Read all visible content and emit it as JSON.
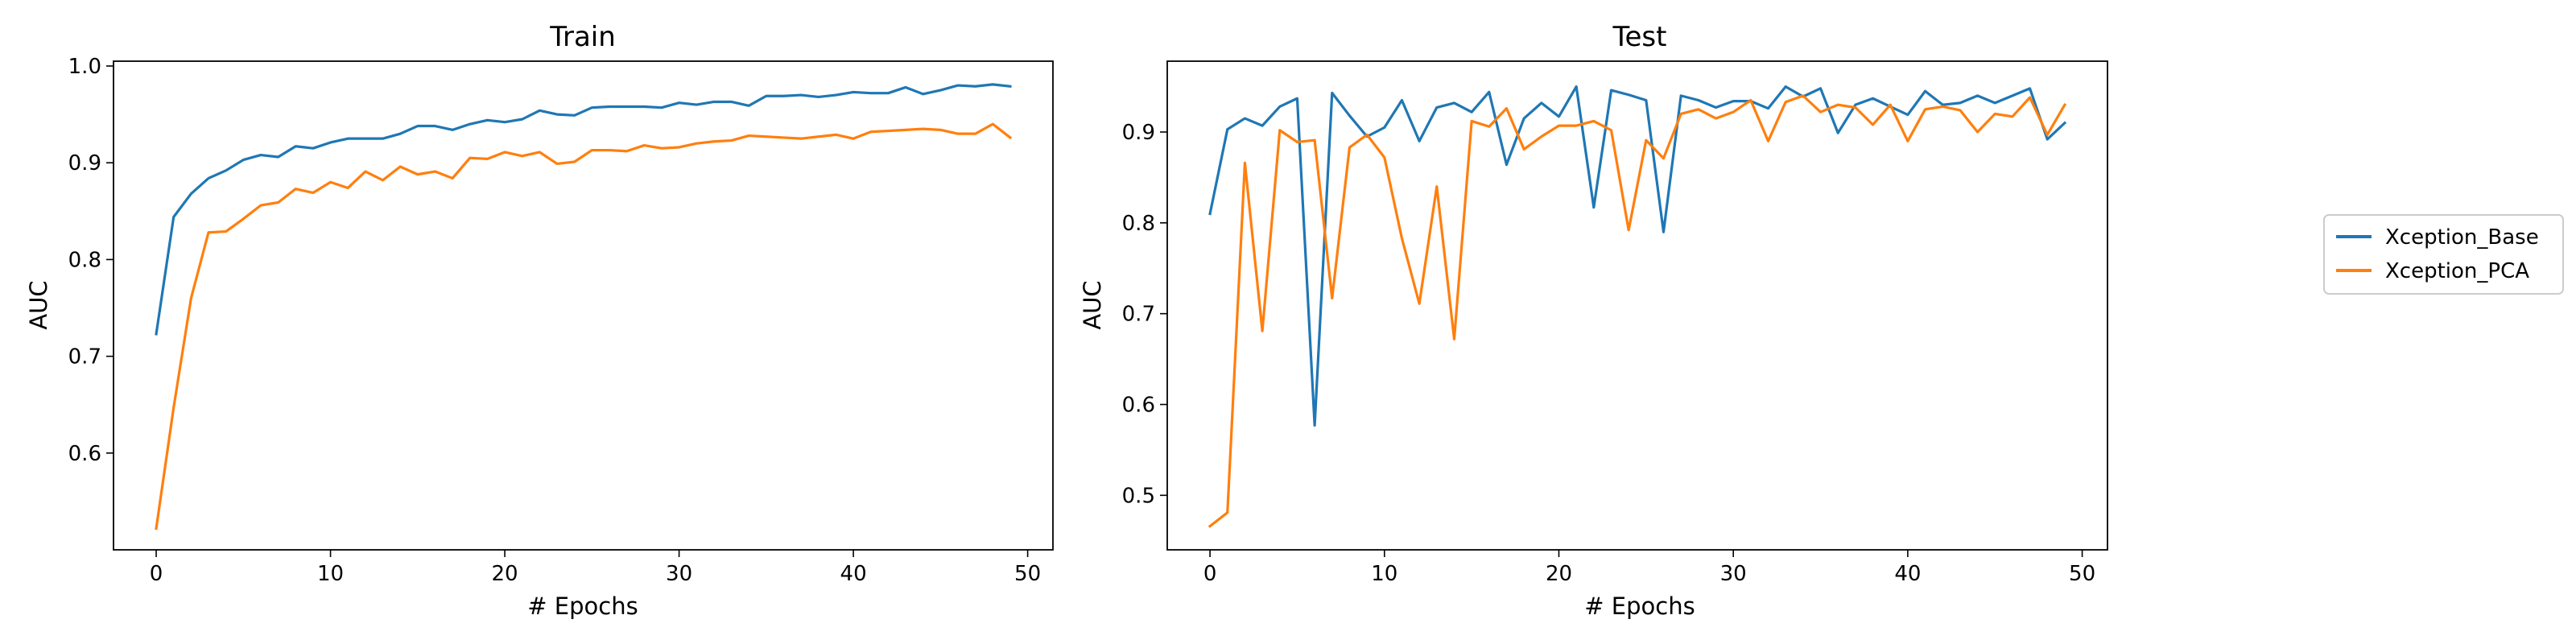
{
  "colors": {
    "series_1": "#1f77b4",
    "series_2": "#ff7f0e",
    "axis": "#000000",
    "legend_border": "#cccccc"
  },
  "legend": {
    "placement": "right-outside",
    "entries": [
      "Xception_Base",
      "Xception_PCA"
    ]
  },
  "chart_data": [
    {
      "type": "line",
      "title": "Train",
      "xlabel": "# Epochs",
      "ylabel": "AUC",
      "xlim": [
        -2.45,
        51.45
      ],
      "ylim": [
        0.5,
        1.005
      ],
      "xticks": [
        0,
        10,
        20,
        30,
        40,
        50
      ],
      "yticks": [
        0.6,
        0.7,
        0.8,
        0.9,
        1.0
      ],
      "ytick_labels": [
        "0.6",
        "0.7",
        "0.8",
        "0.9",
        "1.0"
      ],
      "grid": false,
      "x": [
        0,
        1,
        2,
        3,
        4,
        5,
        6,
        7,
        8,
        9,
        10,
        11,
        12,
        13,
        14,
        15,
        16,
        17,
        18,
        19,
        20,
        21,
        22,
        23,
        24,
        25,
        26,
        27,
        28,
        29,
        30,
        31,
        32,
        33,
        34,
        35,
        36,
        37,
        38,
        39,
        40,
        41,
        42,
        43,
        44,
        45,
        46,
        47,
        48,
        49
      ],
      "series": [
        {
          "name": "Xception_Base",
          "color": "#1f77b4",
          "values": [
            0.723,
            0.844,
            0.868,
            0.884,
            0.892,
            0.903,
            0.908,
            0.906,
            0.917,
            0.915,
            0.921,
            0.925,
            0.925,
            0.925,
            0.93,
            0.938,
            0.938,
            0.934,
            0.94,
            0.944,
            0.942,
            0.945,
            0.954,
            0.95,
            0.949,
            0.957,
            0.958,
            0.958,
            0.958,
            0.957,
            0.962,
            0.96,
            0.963,
            0.963,
            0.959,
            0.969,
            0.969,
            0.97,
            0.968,
            0.97,
            0.973,
            0.972,
            0.972,
            0.978,
            0.971,
            0.975,
            0.98,
            0.979,
            0.981,
            0.979
          ]
        },
        {
          "name": "Xception_PCA",
          "color": "#ff7f0e",
          "values": [
            0.522,
            0.647,
            0.76,
            0.828,
            0.829,
            0.842,
            0.856,
            0.859,
            0.873,
            0.869,
            0.88,
            0.874,
            0.891,
            0.882,
            0.896,
            0.888,
            0.891,
            0.884,
            0.905,
            0.904,
            0.911,
            0.907,
            0.911,
            0.899,
            0.901,
            0.913,
            0.913,
            0.912,
            0.918,
            0.915,
            0.916,
            0.92,
            0.922,
            0.923,
            0.928,
            0.927,
            0.926,
            0.925,
            0.927,
            0.929,
            0.925,
            0.932,
            0.933,
            0.934,
            0.935,
            0.934,
            0.93,
            0.93,
            0.94,
            0.926
          ]
        }
      ]
    },
    {
      "type": "line",
      "title": "Test",
      "xlabel": "# Epochs",
      "ylabel": "AUC",
      "xlim": [
        -2.45,
        51.45
      ],
      "ylim": [
        0.44,
        0.978
      ],
      "xticks": [
        0,
        10,
        20,
        30,
        40,
        50
      ],
      "yticks": [
        0.5,
        0.6,
        0.7,
        0.8,
        0.9
      ],
      "ytick_labels": [
        "0.5",
        "0.6",
        "0.7",
        "0.8",
        "0.9"
      ],
      "grid": false,
      "x": [
        0,
        1,
        2,
        3,
        4,
        5,
        6,
        7,
        8,
        9,
        10,
        11,
        12,
        13,
        14,
        15,
        16,
        17,
        18,
        19,
        20,
        21,
        22,
        23,
        24,
        25,
        26,
        27,
        28,
        29,
        30,
        31,
        32,
        33,
        34,
        35,
        36,
        37,
        38,
        39,
        40,
        41,
        42,
        43,
        44,
        45,
        46,
        47,
        48,
        49
      ],
      "series": [
        {
          "name": "Xception_Base",
          "color": "#1f77b4",
          "values": [
            0.81,
            0.903,
            0.915,
            0.907,
            0.928,
            0.937,
            0.577,
            0.943,
            0.918,
            0.895,
            0.905,
            0.935,
            0.89,
            0.927,
            0.932,
            0.922,
            0.944,
            0.864,
            0.915,
            0.932,
            0.917,
            0.95,
            0.817,
            0.946,
            0.941,
            0.935,
            0.79,
            0.94,
            0.935,
            0.927,
            0.934,
            0.934,
            0.926,
            0.95,
            0.939,
            0.948,
            0.899,
            0.93,
            0.937,
            0.928,
            0.919,
            0.945,
            0.93,
            0.932,
            0.94,
            0.932,
            0.94,
            0.948,
            0.892,
            0.91
          ]
        },
        {
          "name": "Xception_PCA",
          "color": "#ff7f0e",
          "values": [
            0.466,
            0.481,
            0.866,
            0.681,
            0.902,
            0.889,
            0.891,
            0.717,
            0.883,
            0.897,
            0.872,
            0.783,
            0.711,
            0.84,
            0.672,
            0.912,
            0.906,
            0.926,
            0.881,
            0.895,
            0.907,
            0.907,
            0.912,
            0.902,
            0.792,
            0.891,
            0.871,
            0.92,
            0.925,
            0.915,
            0.922,
            0.935,
            0.89,
            0.933,
            0.94,
            0.922,
            0.93,
            0.927,
            0.908,
            0.93,
            0.89,
            0.925,
            0.928,
            0.924,
            0.9,
            0.92,
            0.917,
            0.938,
            0.897,
            0.93
          ]
        }
      ]
    }
  ]
}
